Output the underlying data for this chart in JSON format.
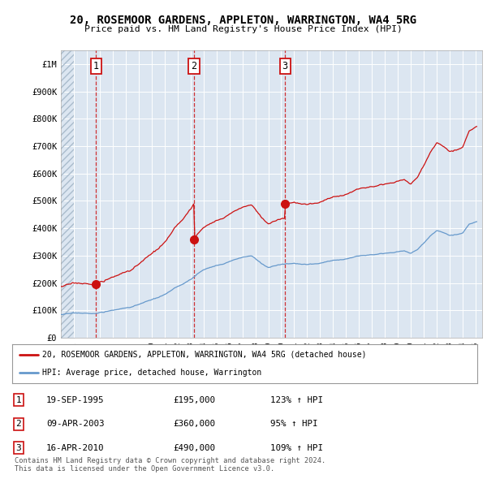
{
  "title": "20, ROSEMOOR GARDENS, APPLETON, WARRINGTON, WA4 5RG",
  "subtitle": "Price paid vs. HM Land Registry's House Price Index (HPI)",
  "background_color": "#ffffff",
  "plot_bg_color": "#dce6f1",
  "hatch_area_color": "#c8d8e8",
  "grid_color": "#ffffff",
  "ylim": [
    0,
    1050000
  ],
  "yticks": [
    0,
    100000,
    200000,
    300000,
    400000,
    500000,
    600000,
    700000,
    800000,
    900000,
    1000000
  ],
  "ytick_labels": [
    "£0",
    "£100K",
    "£200K",
    "£300K",
    "£400K",
    "£500K",
    "£600K",
    "£700K",
    "£800K",
    "£900K",
    "£1M"
  ],
  "xlim_start": 1993.0,
  "xlim_end": 2025.5,
  "hatch_end": 1994.0,
  "purchases": [
    {
      "year": 1995.72,
      "price": 195000,
      "label": "1"
    },
    {
      "year": 2003.27,
      "price": 360000,
      "label": "2"
    },
    {
      "year": 2010.29,
      "price": 490000,
      "label": "3"
    }
  ],
  "legend_line1": "20, ROSEMOOR GARDENS, APPLETON, WARRINGTON, WA4 5RG (detached house)",
  "legend_line2": "HPI: Average price, detached house, Warrington",
  "table_rows": [
    {
      "num": "1",
      "date": "19-SEP-1995",
      "price": "£195,000",
      "hpi": "123% ↑ HPI"
    },
    {
      "num": "2",
      "date": "09-APR-2003",
      "price": "£360,000",
      "hpi": "95% ↑ HPI"
    },
    {
      "num": "3",
      "date": "16-APR-2010",
      "price": "£490,000",
      "hpi": "109% ↑ HPI"
    }
  ],
  "footer": "Contains HM Land Registry data © Crown copyright and database right 2024.\nThis data is licensed under the Open Government Licence v3.0.",
  "red_color": "#cc1111",
  "hpi_line_color": "#6699cc"
}
